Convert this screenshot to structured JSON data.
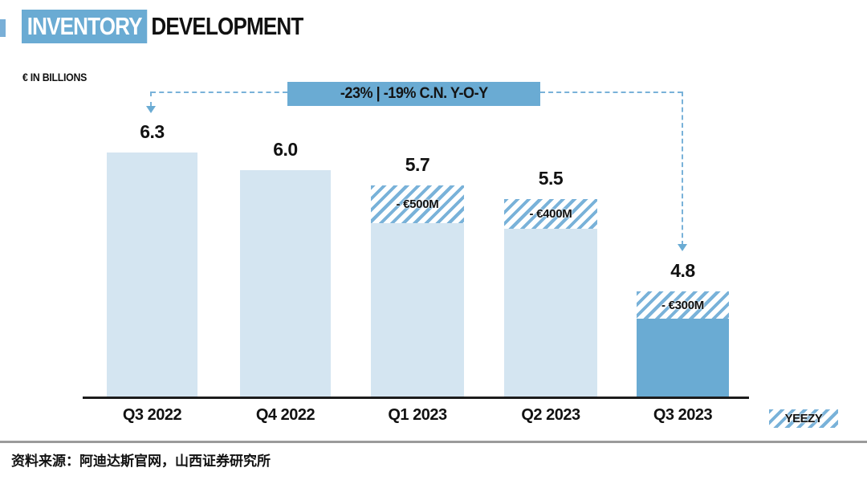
{
  "title": {
    "highlight": "INVENTORY",
    "rest": "DEVELOPMENT"
  },
  "ylabel": "€ IN BILLIONS",
  "annotation": "-23% | -19% C.N. Y-O-Y",
  "legend_label": "YEEZY",
  "source": "资料来源：阿迪达斯官网，山西证券研究所",
  "colors": {
    "accent_blue": "#6aabd3",
    "light_bar": "#d4e5f1",
    "hatch_stripe": "#79b2d9",
    "dashed_line": "#79b2d9",
    "axis": "#1c1c1c",
    "separator_grey": "#9b9b9b",
    "text": "#111111"
  },
  "chart_data": {
    "type": "bar",
    "title": "INVENTORY DEVELOPMENT",
    "ylabel": "€ IN BILLIONS",
    "unit": "€ billions",
    "categories": [
      "Q3 2022",
      "Q4 2022",
      "Q1 2023",
      "Q2 2023",
      "Q3 2023"
    ],
    "values": [
      6.3,
      6.0,
      5.7,
      5.5,
      4.8
    ],
    "value_labels": [
      "6.3",
      "6.0",
      "5.7",
      "5.5",
      "4.8"
    ],
    "yeezy_labels": [
      "",
      "",
      "- €500M",
      "- €400M",
      "- €300M"
    ],
    "annotation": "-23% | -19% C.N. Y-O-Y",
    "legend": [
      "YEEZY"
    ],
    "legend_position": "bottom-right",
    "grid": false
  }
}
